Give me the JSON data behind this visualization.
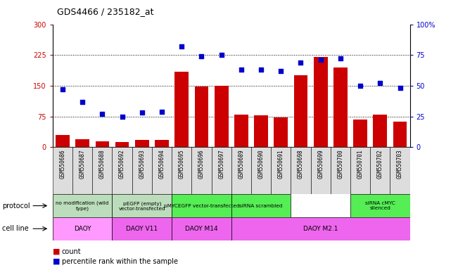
{
  "title": "GDS4466 / 235182_at",
  "samples": [
    "GSM550686",
    "GSM550687",
    "GSM550688",
    "GSM550692",
    "GSM550693",
    "GSM550694",
    "GSM550695",
    "GSM550696",
    "GSM550697",
    "GSM550689",
    "GSM550690",
    "GSM550691",
    "GSM550698",
    "GSM550699",
    "GSM550700",
    "GSM550701",
    "GSM550702",
    "GSM550703"
  ],
  "counts": [
    30,
    20,
    15,
    12,
    18,
    18,
    185,
    148,
    150,
    80,
    78,
    72,
    175,
    220,
    195,
    68,
    80,
    63
  ],
  "percentiles": [
    47,
    37,
    27,
    25,
    28,
    29,
    82,
    74,
    75,
    63,
    63,
    62,
    69,
    71,
    72,
    50,
    52,
    48
  ],
  "ylim_left": [
    0,
    300
  ],
  "ylim_right": [
    0,
    100
  ],
  "yticks_left": [
    0,
    75,
    150,
    225,
    300
  ],
  "yticks_right": [
    0,
    25,
    50,
    75,
    100
  ],
  "bar_color": "#CC0000",
  "dot_color": "#0000CC",
  "plot_bg": "#FFFFFF",
  "proto_groups": [
    {
      "label": "no modification (wild\ntype)",
      "start": 0,
      "end": 2,
      "color": "#BBDDBB"
    },
    {
      "label": "pEGFP (empty)\nvector-transfected",
      "start": 3,
      "end": 5,
      "color": "#BBDDBB"
    },
    {
      "label": "pMYCEGFP vector-transfected",
      "start": 6,
      "end": 8,
      "color": "#55EE55"
    },
    {
      "label": "siRNA scrambled",
      "start": 9,
      "end": 11,
      "color": "#55EE55"
    },
    {
      "label": "siRNA cMYC\nsilenced",
      "start": 15,
      "end": 17,
      "color": "#55EE55"
    }
  ],
  "cell_groups": [
    {
      "label": "DAOY",
      "start": 0,
      "end": 2,
      "color": "#FF99FF"
    },
    {
      "label": "DAOY V11",
      "start": 3,
      "end": 5,
      "color": "#EE66EE"
    },
    {
      "label": "DAOY M14",
      "start": 6,
      "end": 8,
      "color": "#EE66EE"
    },
    {
      "label": "DAOY M2.1",
      "start": 9,
      "end": 17,
      "color": "#EE66EE"
    }
  ],
  "tick_bg": "#DDDDDD",
  "legend_count_color": "#CC0000",
  "legend_pct_color": "#0000CC"
}
